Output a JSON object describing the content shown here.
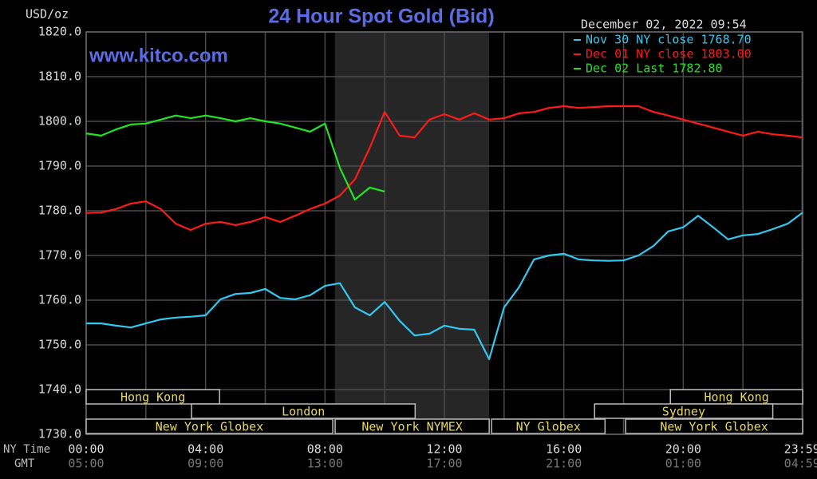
{
  "chart_data": {
    "type": "line",
    "title": "24 Hour Spot Gold (Bid)",
    "watermark": "www.kitco.com",
    "timestamp": "December 02, 2022 09:54",
    "y_unit": "USD/oz",
    "x_label": "NY Time",
    "x2_label": "GMT",
    "xlim": [
      0,
      24
    ],
    "xticks": [
      {
        "value": 0,
        "label": "00:00"
      },
      {
        "value": 4,
        "label": "04:00"
      },
      {
        "value": 8,
        "label": "08:00"
      },
      {
        "value": 12,
        "label": "12:00"
      },
      {
        "value": 16,
        "label": "16:00"
      },
      {
        "value": 20,
        "label": "20:00"
      },
      {
        "value": 23.98,
        "label": "23:59"
      }
    ],
    "x2tick_labels": [
      "05:00",
      "09:00",
      "13:00",
      "17:00",
      "21:00",
      "01:00",
      "04:59"
    ],
    "xgrid": [
      2,
      6,
      10,
      14,
      18,
      22
    ],
    "ylim": [
      1730,
      1820
    ],
    "yticks": [
      {
        "value": 1730,
        "label": "1730.0"
      },
      {
        "value": 1740,
        "label": "1740.0"
      },
      {
        "value": 1750,
        "label": "1750.0"
      },
      {
        "value": 1760,
        "label": "1760.0"
      },
      {
        "value": 1770,
        "label": "1770.0"
      },
      {
        "value": 1780,
        "label": "1780.0"
      },
      {
        "value": 1790,
        "label": "1790.0"
      },
      {
        "value": 1800,
        "label": "1800.0"
      },
      {
        "value": 1810,
        "label": "1810.0"
      },
      {
        "value": 1820,
        "label": "1820.0"
      }
    ],
    "grid": true,
    "shaded_span": [
      8.33,
      13.5
    ],
    "session_rows": [
      [
        {
          "label": "Hong Kong",
          "start": 0,
          "end": 4.47
        },
        {
          "label": "Hong Kong",
          "start": 19.57,
          "end": 24
        }
      ],
      [
        {
          "label": "London",
          "start": 3.53,
          "end": 11.02
        },
        {
          "label": "Sydney",
          "start": 17.03,
          "end": 23.0
        }
      ],
      [
        {
          "label": "New York Globex",
          "start": 0,
          "end": 8.26
        },
        {
          "label": "New York NYMEX",
          "start": 8.34,
          "end": 13.5
        },
        {
          "label": "NY Globex",
          "start": 13.58,
          "end": 17.38
        },
        {
          "label": "New York Globex",
          "start": 18.07,
          "end": 24
        }
      ]
    ],
    "x": [
      0,
      0.5,
      1,
      1.5,
      2,
      2.5,
      3,
      3.5,
      4,
      4.5,
      5,
      5.5,
      6,
      6.5,
      7,
      7.5,
      8,
      8.5,
      9,
      9.5,
      10,
      10.5,
      11,
      11.5,
      12,
      12.5,
      13,
      13.5,
      14,
      14.5,
      15,
      15.5,
      16,
      16.5,
      17,
      17.5,
      18,
      18.5,
      19,
      19.5,
      20,
      20.5,
      21,
      21.5,
      22,
      22.5,
      23,
      23.5,
      24
    ],
    "series": [
      {
        "name": "Nov 30 NY close 1768.70",
        "color": "#33c8f0",
        "values": [
          1754.8,
          1754.8,
          1754.3,
          1753.9,
          1754.8,
          1755.7,
          1756.1,
          1756.3,
          1756.6,
          1760.2,
          1761.4,
          1761.6,
          1762.5,
          1760.5,
          1760.2,
          1761.1,
          1763.2,
          1763.8,
          1758.4,
          1756.6,
          1759.6,
          1755.4,
          1752.1,
          1752.5,
          1754.3,
          1753.6,
          1753.4,
          1746.8,
          1758.4,
          1762.9,
          1769.1,
          1770.0,
          1770.4,
          1769.1,
          1768.9,
          1768.8,
          1768.9,
          1770.0,
          1772.1,
          1775.4,
          1776.3,
          1778.9,
          1776.3,
          1773.6,
          1774.5,
          1774.8,
          1775.9,
          1777.1,
          1779.6
        ]
      },
      {
        "name": "Dec 01 NY close 1803.00",
        "color": "#ff1a1a",
        "values": [
          1779.5,
          1779.6,
          1780.4,
          1781.6,
          1782.1,
          1780.4,
          1777.1,
          1775.7,
          1777.1,
          1777.5,
          1776.8,
          1777.5,
          1778.6,
          1777.5,
          1778.9,
          1780.4,
          1781.6,
          1783.4,
          1787.0,
          1794.1,
          1802.1,
          1796.8,
          1796.4,
          1800.4,
          1801.6,
          1800.4,
          1801.8,
          1800.4,
          1800.7,
          1801.8,
          1802.1,
          1803.0,
          1803.4,
          1803.0,
          1803.2,
          1803.4,
          1803.4,
          1803.4,
          1802.1,
          1801.3,
          1800.4,
          1799.5,
          1798.6,
          1797.7,
          1796.8,
          1797.7,
          1797.1,
          1796.8,
          1796.4
        ]
      },
      {
        "name": "Dec 02 Last 1782.80",
        "color": "#22e622",
        "values": [
          1797.3,
          1796.8,
          1798.2,
          1799.3,
          1799.5,
          1800.4,
          1801.3,
          1800.7,
          1801.3,
          1800.7,
          1800.0,
          1800.7,
          1800.0,
          1799.5,
          1798.6,
          1797.7,
          1799.5,
          1789.6,
          1782.5,
          1785.2,
          1784.3,
          null,
          null,
          null,
          null,
          null,
          null,
          null,
          null,
          null,
          null,
          null,
          null,
          null,
          null,
          null,
          null,
          null,
          null,
          null,
          null,
          null,
          null,
          null,
          null,
          null,
          null,
          null,
          null
        ]
      }
    ]
  }
}
